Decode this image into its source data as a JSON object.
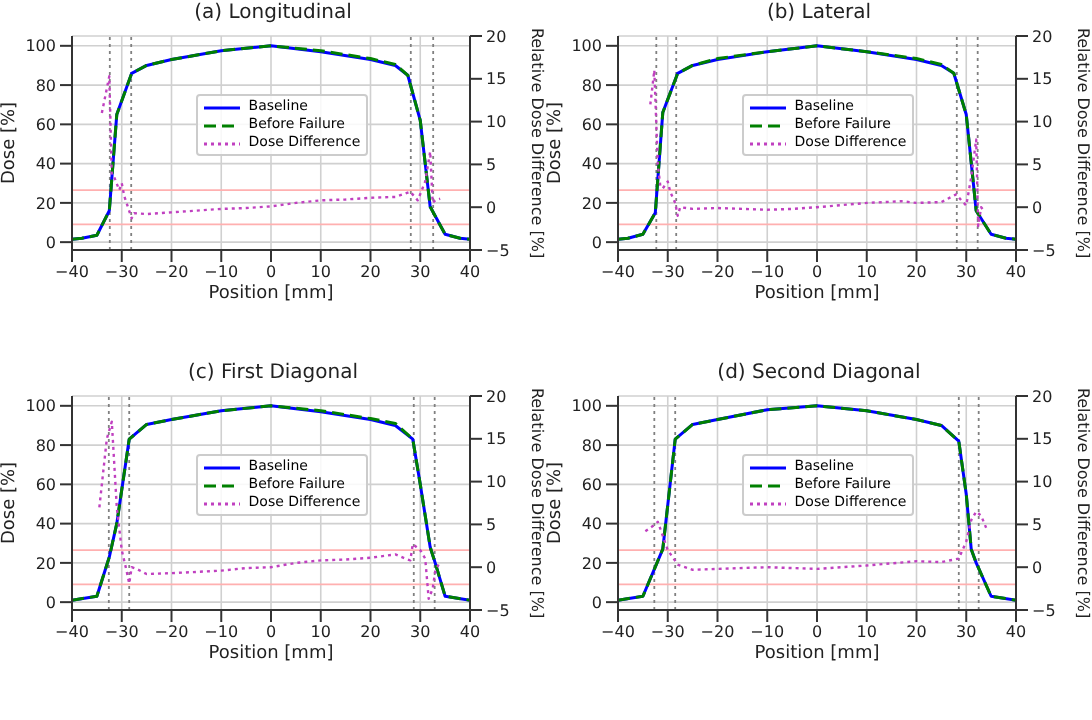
{
  "chart_data": [
    {
      "type": "line",
      "title": "(a) Longitudinal",
      "xlabel": "Position [mm]",
      "ylabel": "Dose [%]",
      "y2label": "Relative Dose Difference [%]",
      "xlim": [
        -40,
        40
      ],
      "xticks": [
        -40,
        -30,
        -20,
        -10,
        0,
        10,
        20,
        30,
        40
      ],
      "ylim": [
        -4,
        105
      ],
      "yticks": [
        0,
        20,
        40,
        60,
        80,
        100
      ],
      "y2lim": [
        -5,
        20
      ],
      "y2ticks": [
        -5,
        0,
        5,
        10,
        15,
        20
      ],
      "grid": true,
      "legend": "center",
      "series": [
        {
          "name": "Baseline",
          "color": "#0000ff",
          "line_style": "solid",
          "x": [
            -40,
            -38,
            -35,
            -32.5,
            -31,
            -28,
            -25,
            -20,
            -10,
            0,
            10,
            20,
            25,
            27.5,
            30,
            32,
            35,
            38,
            40
          ],
          "values": [
            1.5,
            2,
            3.5,
            16,
            65,
            86,
            90,
            93,
            97.5,
            100,
            97,
            93,
            90,
            85,
            62,
            18,
            4,
            2,
            1.5
          ]
        },
        {
          "name": "Before Failure",
          "color": "#008000",
          "line_style": "dashed",
          "x": [
            -40,
            -38,
            -35,
            -32.5,
            -31,
            -28,
            -25,
            -20,
            -10,
            0,
            10,
            20,
            25,
            27.5,
            30,
            32,
            35,
            38,
            40
          ],
          "values": [
            1.5,
            2,
            3.5,
            16,
            65,
            86,
            90,
            93,
            97.5,
            100,
            97.5,
            93.5,
            90.5,
            85,
            62,
            18,
            4,
            2,
            1.5
          ]
        },
        {
          "name": "Dose Difference",
          "color": "#c040c0",
          "line_style": "dotted",
          "axis": "y2",
          "x": [
            -34,
            -32.5,
            -32,
            -31.5,
            -30.5,
            -30,
            -29.5,
            -28,
            -27.5,
            -25,
            -20,
            -10,
            -5,
            0,
            5,
            10,
            15,
            20,
            25,
            28,
            29.5,
            31,
            32,
            32.5,
            33,
            34
          ],
          "values": [
            11,
            15.3,
            3.7,
            3.5,
            2,
            2.8,
            1.3,
            -1.3,
            -0.7,
            -0.8,
            -0.6,
            -0.2,
            -0.1,
            0.1,
            0.5,
            0.8,
            0.9,
            1.1,
            1.2,
            1.8,
            0.8,
            3,
            6.5,
            0.5,
            0.8,
            1
          ]
        }
      ],
      "ref_lines": [
        {
          "axis": "x",
          "value": -32.4,
          "color": "#808080",
          "line_style": "dotted"
        },
        {
          "axis": "x",
          "value": -28.1,
          "color": "#808080",
          "line_style": "dotted"
        },
        {
          "axis": "x",
          "value": 28.1,
          "color": "#808080",
          "line_style": "dotted"
        },
        {
          "axis": "x",
          "value": 32.6,
          "color": "#808080",
          "line_style": "dotted"
        },
        {
          "axis": "y2",
          "value": 2,
          "color": "#ffb0b0",
          "line_style": "solid"
        },
        {
          "axis": "y2",
          "value": -2,
          "color": "#ffb0b0",
          "line_style": "solid"
        }
      ]
    },
    {
      "type": "line",
      "title": "(b) Lateral",
      "xlabel": "Position [mm]",
      "ylabel": "Dose [%]",
      "y2label": "Relative Dose Difference [%]",
      "xlim": [
        -40,
        40
      ],
      "xticks": [
        -40,
        -30,
        -20,
        -10,
        0,
        10,
        20,
        30,
        40
      ],
      "ylim": [
        -4,
        105
      ],
      "yticks": [
        0,
        20,
        40,
        60,
        80,
        100
      ],
      "y2lim": [
        -5,
        20
      ],
      "y2ticks": [
        -5,
        0,
        5,
        10,
        15,
        20
      ],
      "grid": true,
      "legend": "center",
      "series": [
        {
          "name": "Baseline",
          "color": "#0000ff",
          "line_style": "solid",
          "x": [
            -40,
            -38,
            -35,
            -32.5,
            -31,
            -28,
            -25,
            -20,
            -10,
            0,
            10,
            20,
            25,
            27.5,
            30,
            32,
            35,
            38,
            40
          ],
          "values": [
            1.5,
            2,
            4,
            15,
            66,
            86,
            90,
            93,
            97,
            100,
            97,
            93,
            90,
            86,
            65,
            16,
            4,
            2,
            1.5
          ]
        },
        {
          "name": "Before Failure",
          "color": "#008000",
          "line_style": "dashed",
          "x": [
            -40,
            -38,
            -35,
            -32.5,
            -31,
            -28,
            -25,
            -20,
            -10,
            0,
            10,
            20,
            25,
            27.5,
            30,
            32,
            35,
            38,
            40
          ],
          "values": [
            1.5,
            2,
            4,
            15,
            66,
            86,
            90,
            93.5,
            97,
            100,
            97,
            93.5,
            90.5,
            86,
            65,
            16,
            4,
            2,
            1.5
          ]
        },
        {
          "name": "Dose Difference",
          "color": "#c040c0",
          "line_style": "dotted",
          "axis": "y2",
          "x": [
            -33.5,
            -32.7,
            -32,
            -31.5,
            -31,
            -30,
            -29.5,
            -28.5,
            -28,
            -27.5,
            -25,
            -20,
            -10,
            -5,
            0,
            10,
            17,
            20,
            25,
            28,
            29,
            30,
            31,
            32,
            32.4,
            33,
            33.5
          ],
          "values": [
            12,
            16,
            5,
            2.5,
            2.2,
            3,
            1.8,
            0.5,
            -1,
            0,
            -0.2,
            -0.1,
            -0.3,
            -0.2,
            0,
            0.5,
            0.7,
            0.5,
            0.6,
            1.5,
            0.8,
            0.2,
            3.5,
            7.9,
            -2.2,
            0,
            -0.4
          ]
        }
      ],
      "ref_lines": [
        {
          "axis": "x",
          "value": -32.3,
          "color": "#808080",
          "line_style": "dotted"
        },
        {
          "axis": "x",
          "value": -28.3,
          "color": "#808080",
          "line_style": "dotted"
        },
        {
          "axis": "x",
          "value": 28.1,
          "color": "#808080",
          "line_style": "dotted"
        },
        {
          "axis": "x",
          "value": 32.3,
          "color": "#808080",
          "line_style": "dotted"
        },
        {
          "axis": "y2",
          "value": 2,
          "color": "#ffb0b0",
          "line_style": "solid"
        },
        {
          "axis": "y2",
          "value": -2,
          "color": "#ffb0b0",
          "line_style": "solid"
        }
      ]
    },
    {
      "type": "line",
      "title": "(c) First Diagonal",
      "xlabel": "Position [mm]",
      "ylabel": "Dose [%]",
      "y2label": "Relative Dose Difference [%]",
      "xlim": [
        -40,
        40
      ],
      "xticks": [
        -40,
        -30,
        -20,
        -10,
        0,
        10,
        20,
        30,
        40
      ],
      "ylim": [
        -4,
        105
      ],
      "yticks": [
        0,
        20,
        40,
        60,
        80,
        100
      ],
      "y2lim": [
        -5,
        20
      ],
      "y2ticks": [
        -5,
        0,
        5,
        10,
        15,
        20
      ],
      "grid": true,
      "legend": "center",
      "series": [
        {
          "name": "Baseline",
          "color": "#0000ff",
          "line_style": "solid",
          "x": [
            -40,
            -35,
            -32.5,
            -31,
            -28.5,
            -25,
            -20,
            -10,
            0,
            10,
            20,
            25,
            28.5,
            30,
            32,
            33,
            35,
            40
          ],
          "values": [
            1,
            3,
            23,
            40,
            83,
            90.5,
            93,
            97.5,
            100,
            97,
            93,
            90,
            83,
            60,
            28,
            20,
            3,
            1
          ]
        },
        {
          "name": "Before Failure",
          "color": "#008000",
          "line_style": "dashed",
          "x": [
            -40,
            -35,
            -32.5,
            -31,
            -28.5,
            -25,
            -20,
            -10,
            0,
            10,
            20,
            25,
            28.5,
            30,
            32,
            33,
            35,
            40
          ],
          "values": [
            1,
            3,
            23,
            40,
            83,
            90.5,
            93,
            97.5,
            100,
            97.5,
            93.5,
            91,
            83,
            60,
            28,
            20,
            3,
            1
          ]
        },
        {
          "name": "Dose Difference",
          "color": "#c040c0",
          "line_style": "dotted",
          "axis": "y2",
          "x": [
            -34.5,
            -33,
            -32,
            -31,
            -30,
            -29,
            -28.5,
            -28,
            -27,
            -25,
            -20,
            -10,
            -5,
            0,
            5,
            10,
            15,
            20,
            25,
            27,
            28,
            28.5,
            30,
            31,
            31.7,
            32.5,
            33,
            34
          ],
          "values": [
            7,
            15,
            17,
            7,
            2,
            -0.5,
            -1.9,
            0,
            -0.2,
            -0.8,
            -0.7,
            -0.4,
            -0.1,
            0,
            0.5,
            0.8,
            0.9,
            1.1,
            1.5,
            1,
            0.8,
            2.7,
            2,
            1,
            -3.7,
            -2.5,
            -0.5,
            0.7
          ]
        }
      ],
      "ref_lines": [
        {
          "axis": "x",
          "value": -32.6,
          "color": "#808080",
          "line_style": "dotted"
        },
        {
          "axis": "x",
          "value": -28.5,
          "color": "#808080",
          "line_style": "dotted"
        },
        {
          "axis": "x",
          "value": 28.7,
          "color": "#808080",
          "line_style": "dotted"
        },
        {
          "axis": "x",
          "value": 32.9,
          "color": "#808080",
          "line_style": "dotted"
        },
        {
          "axis": "y2",
          "value": 2,
          "color": "#ffb0b0",
          "line_style": "solid"
        },
        {
          "axis": "y2",
          "value": -2,
          "color": "#ffb0b0",
          "line_style": "solid"
        }
      ]
    },
    {
      "type": "line",
      "title": "(d) Second Diagonal",
      "xlabel": "Position [mm]",
      "ylabel": "Dose [%]",
      "y2label": "Relative Dose Difference [%]",
      "xlim": [
        -40,
        40
      ],
      "xticks": [
        -40,
        -30,
        -20,
        -10,
        0,
        10,
        20,
        30,
        40
      ],
      "ylim": [
        -4,
        105
      ],
      "yticks": [
        0,
        20,
        40,
        60,
        80,
        100
      ],
      "y2lim": [
        -5,
        20
      ],
      "y2ticks": [
        -5,
        0,
        5,
        10,
        15,
        20
      ],
      "grid": true,
      "legend": "center",
      "series": [
        {
          "name": "Baseline",
          "color": "#0000ff",
          "line_style": "solid",
          "x": [
            -40,
            -35,
            -32.5,
            -31,
            -28.5,
            -25,
            -20,
            -10,
            0,
            10,
            20,
            25,
            28.5,
            30,
            31,
            32,
            35,
            40
          ],
          "values": [
            1,
            3,
            18,
            27,
            83,
            90.5,
            93,
            98,
            100,
            97.5,
            93,
            90,
            82,
            55,
            27,
            20,
            3,
            1
          ]
        },
        {
          "name": "Before Failure",
          "color": "#008000",
          "line_style": "dashed",
          "x": [
            -40,
            -35,
            -32.5,
            -31,
            -28.5,
            -25,
            -20,
            -10,
            0,
            10,
            20,
            25,
            28.5,
            30,
            31,
            32,
            35,
            40
          ],
          "values": [
            1,
            3,
            18,
            27,
            83,
            90.5,
            93,
            98,
            100,
            97.5,
            93,
            90,
            82,
            55,
            27,
            20,
            3,
            1
          ]
        },
        {
          "name": "Dose Difference",
          "color": "#c040c0",
          "line_style": "dotted",
          "axis": "y2",
          "x": [
            -34.5,
            -33,
            -32,
            -31.5,
            -30,
            -28,
            -25,
            -20,
            -10,
            0,
            10,
            20,
            25,
            28.5,
            30,
            31,
            32,
            33,
            34
          ],
          "values": [
            4.2,
            4.8,
            5.3,
            4.5,
            2,
            0.3,
            -0.3,
            -0.2,
            0,
            -0.2,
            0.2,
            0.7,
            0.6,
            1,
            3,
            5.5,
            6.5,
            6,
            4.6
          ]
        }
      ],
      "ref_lines": [
        {
          "axis": "x",
          "value": -32.7,
          "color": "#808080",
          "line_style": "dotted"
        },
        {
          "axis": "x",
          "value": -28.5,
          "color": "#808080",
          "line_style": "dotted"
        },
        {
          "axis": "x",
          "value": 28.5,
          "color": "#808080",
          "line_style": "dotted"
        },
        {
          "axis": "x",
          "value": 32.5,
          "color": "#808080",
          "line_style": "dotted"
        },
        {
          "axis": "y2",
          "value": 2,
          "color": "#ffb0b0",
          "line_style": "solid"
        },
        {
          "axis": "y2",
          "value": -2,
          "color": "#ffb0b0",
          "line_style": "solid"
        }
      ]
    }
  ]
}
